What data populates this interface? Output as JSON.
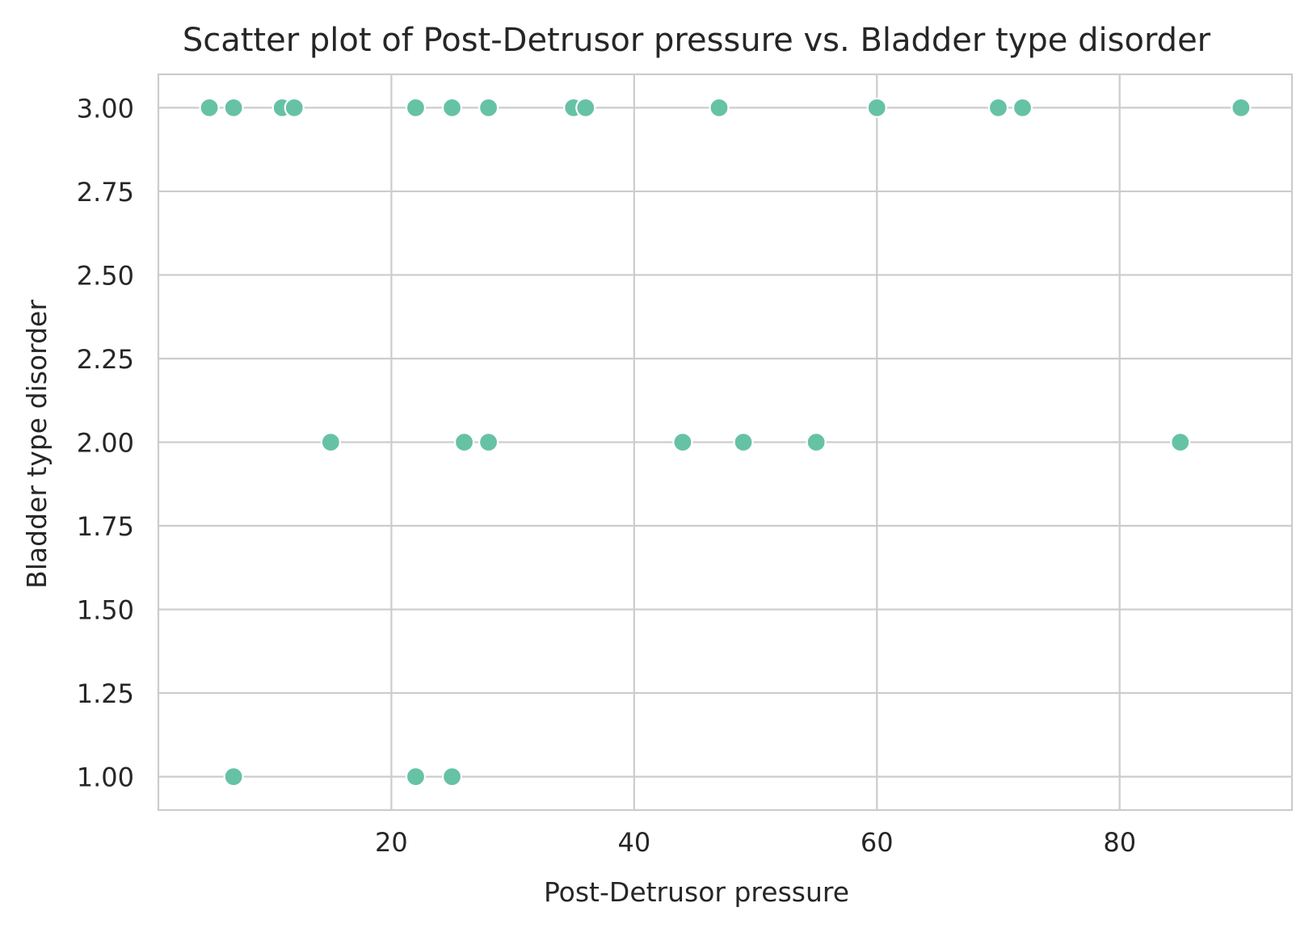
{
  "chart_data": {
    "type": "scatter",
    "title": "Scatter plot of Post-Detrusor pressure vs. Bladder type disorder",
    "xlabel": "Post-Detrusor pressure",
    "ylabel": "Bladder type disorder",
    "xlim": [
      0.8,
      94.2
    ],
    "ylim": [
      0.9,
      3.1
    ],
    "xticks": [
      20,
      40,
      60,
      80
    ],
    "xtick_labels": [
      "20",
      "40",
      "60",
      "80"
    ],
    "yticks": [
      1.0,
      1.25,
      1.5,
      1.75,
      2.0,
      2.25,
      2.5,
      2.75,
      3.0
    ],
    "ytick_labels": [
      "1.00",
      "1.25",
      "1.50",
      "1.75",
      "2.00",
      "2.25",
      "2.50",
      "2.75",
      "3.00"
    ],
    "grid": true,
    "marker_color": "#66c2a5",
    "marker_edge_color": "#ffffff",
    "series": [
      {
        "points": [
          {
            "x": 5,
            "y": 3
          },
          {
            "x": 7,
            "y": 3
          },
          {
            "x": 11,
            "y": 3
          },
          {
            "x": 12,
            "y": 3
          },
          {
            "x": 22,
            "y": 3
          },
          {
            "x": 25,
            "y": 3
          },
          {
            "x": 28,
            "y": 3
          },
          {
            "x": 35,
            "y": 3
          },
          {
            "x": 36,
            "y": 3
          },
          {
            "x": 47,
            "y": 3
          },
          {
            "x": 60,
            "y": 3
          },
          {
            "x": 70,
            "y": 3
          },
          {
            "x": 72,
            "y": 3
          },
          {
            "x": 90,
            "y": 3
          },
          {
            "x": 15,
            "y": 2
          },
          {
            "x": 26,
            "y": 2
          },
          {
            "x": 28,
            "y": 2
          },
          {
            "x": 44,
            "y": 2
          },
          {
            "x": 49,
            "y": 2
          },
          {
            "x": 55,
            "y": 2
          },
          {
            "x": 85,
            "y": 2
          },
          {
            "x": 7,
            "y": 1
          },
          {
            "x": 22,
            "y": 1
          },
          {
            "x": 25,
            "y": 1
          }
        ]
      }
    ]
  }
}
